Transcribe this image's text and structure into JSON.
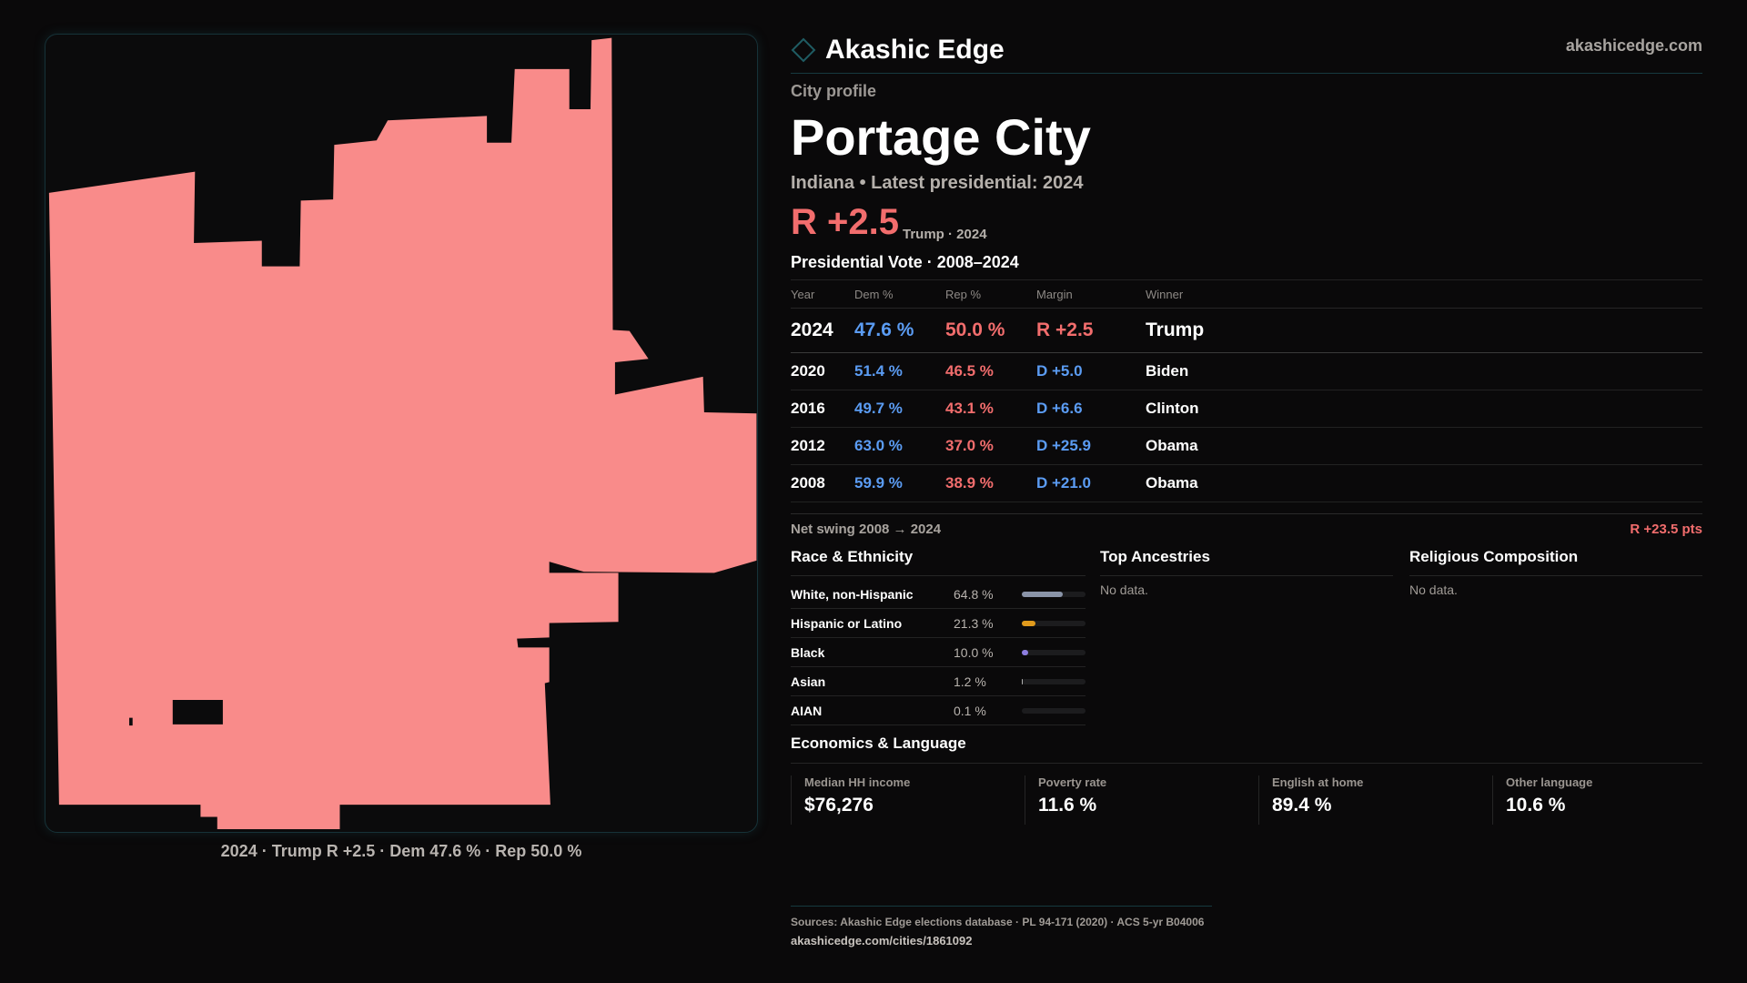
{
  "brand": {
    "name": "Akashic Edge",
    "site": "akashicedge.com"
  },
  "colors": {
    "dem": "#5b9cf3",
    "rep": "#f26d6d",
    "map_fill": "#f98b8a",
    "accent": "#1f5c63"
  },
  "profile": {
    "kicker": "City profile",
    "title": "Portage City",
    "subtitle": "Indiana • Latest presidential: 2024",
    "margin": "R +2.5",
    "margin_note": "Trump · 2024"
  },
  "map": {
    "caption": "2024 · Trump R +2.5 · Dem 47.6 % · Rep 50.0 %"
  },
  "vote": {
    "heading": "Presidential Vote · 2008–2024",
    "columns": [
      "Year",
      "Dem %",
      "Rep %",
      "Margin",
      "Winner"
    ],
    "rows": [
      {
        "year": "2024",
        "dem": "47.6 %",
        "rep": "50.0 %",
        "margin": "R +2.5",
        "party": "R",
        "winner": "Trump"
      },
      {
        "year": "2020",
        "dem": "51.4 %",
        "rep": "46.5 %",
        "margin": "D +5.0",
        "party": "D",
        "winner": "Biden"
      },
      {
        "year": "2016",
        "dem": "49.7 %",
        "rep": "43.1 %",
        "margin": "D +6.6",
        "party": "D",
        "winner": "Clinton"
      },
      {
        "year": "2012",
        "dem": "63.0 %",
        "rep": "37.0 %",
        "margin": "D +25.9",
        "party": "D",
        "winner": "Obama"
      },
      {
        "year": "2008",
        "dem": "59.9 %",
        "rep": "38.9 %",
        "margin": "D +21.0",
        "party": "D",
        "winner": "Obama"
      }
    ],
    "swing_label": "Net swing 2008 → 2024",
    "swing_value": "R +23.5 pts"
  },
  "race": {
    "heading": "Race & Ethnicity",
    "items": [
      {
        "label": "White, non-Hispanic",
        "value": "64.8 %",
        "pct": 64.8,
        "color": "#8a94a8"
      },
      {
        "label": "Hispanic or Latino",
        "value": "21.3 %",
        "pct": 21.3,
        "color": "#e09a1c"
      },
      {
        "label": "Black",
        "value": "10.0 %",
        "pct": 10.0,
        "color": "#8d7de0"
      },
      {
        "label": "Asian",
        "value": "1.2 %",
        "pct": 1.2,
        "color": "#b0b0b0"
      },
      {
        "label": "AIAN",
        "value": "0.1 %",
        "pct": 0.1,
        "color": "#b0b0b0"
      }
    ]
  },
  "ancestries": {
    "heading": "Top Ancestries",
    "empty": "No data."
  },
  "religion": {
    "heading": "Religious Composition",
    "empty": "No data."
  },
  "economics": {
    "heading": "Economics & Language",
    "stats": [
      {
        "label": "Median HH income",
        "value": "$76,276"
      },
      {
        "label": "Poverty rate",
        "value": "11.6 %"
      },
      {
        "label": "English at home",
        "value": "89.4 %"
      },
      {
        "label": "Other language",
        "value": "10.6 %"
      }
    ]
  },
  "footer": {
    "sources": "Sources: Akashic Edge elections database · PL 94-171 (2020) · ACS 5-yr B04006",
    "url": "akashicedge.com/cities/1861092"
  }
}
